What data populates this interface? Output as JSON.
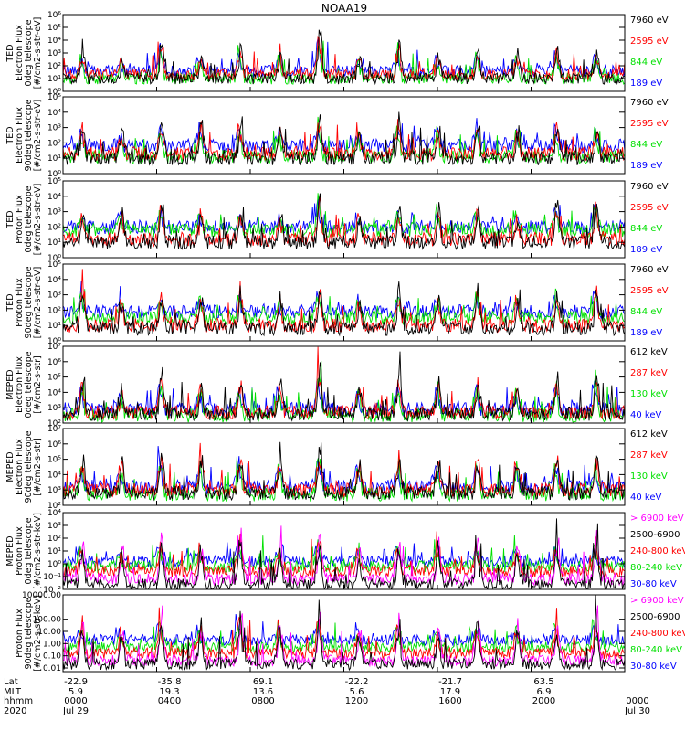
{
  "title": "NOAA19",
  "colors": {
    "black": "#000000",
    "red": "#ff0000",
    "green": "#00e000",
    "blue": "#0000ff",
    "magenta": "#ff00ff"
  },
  "chart_data": [
    {
      "type": "line",
      "ylabel": [
        "TED",
        "Electron Flux",
        "0deg telescope",
        "[#/cm2-s-str-eV]"
      ],
      "ytick_labels": [
        "10⁰",
        "10¹",
        "10²",
        "10³",
        "10⁴",
        "10⁵",
        "10⁶"
      ],
      "ylim_exp": [
        0,
        6
      ],
      "series": [
        {
          "name": "7960 eV",
          "color": "black",
          "base": 1.0
        },
        {
          "name": "2595 eV",
          "color": "red",
          "base": 1.3
        },
        {
          "name": "844 eV",
          "color": "green",
          "base": 1.0
        },
        {
          "name": "189 eV",
          "color": "blue",
          "base": 1.6
        }
      ],
      "peaks_exp": [
        3.5,
        2.8,
        4.5,
        3.2,
        4.0,
        3.8,
        5.4,
        3.0,
        4.2,
        3.5,
        3.9,
        3.3,
        4.0,
        3.6
      ]
    },
    {
      "type": "line",
      "ylabel": [
        "TED",
        "Electron Flux",
        "90deg telescope",
        "[#/cm2-s-str-eV]"
      ],
      "ytick_labels": [
        "10⁰",
        "10¹",
        "10²",
        "10³",
        "10⁴",
        "10⁵"
      ],
      "ylim_exp": [
        0,
        5
      ],
      "series": [
        {
          "name": "7960 eV",
          "color": "black",
          "base": 1.0
        },
        {
          "name": "2595 eV",
          "color": "red",
          "base": 1.3
        },
        {
          "name": "844 eV",
          "color": "green",
          "base": 1.1
        },
        {
          "name": "189 eV",
          "color": "blue",
          "base": 1.8
        }
      ],
      "peaks_exp": [
        3.2,
        3.0,
        4.0,
        3.5,
        3.8,
        3.4,
        4.5,
        3.0,
        3.9,
        3.6,
        3.7,
        3.2,
        3.8,
        3.5
      ]
    },
    {
      "type": "line",
      "ylabel": [
        "TED",
        "Proton Flux",
        "0deg telescope",
        "[#/cm2-s-str-eV]"
      ],
      "ytick_labels": [
        "10⁰",
        "10¹",
        "10²",
        "10³",
        "10⁴",
        "10⁵"
      ],
      "ylim_exp": [
        0,
        5
      ],
      "series": [
        {
          "name": "7960 eV",
          "color": "black",
          "base": 1.0
        },
        {
          "name": "2595 eV",
          "color": "red",
          "base": 1.2
        },
        {
          "name": "844 eV",
          "color": "green",
          "base": 1.8
        },
        {
          "name": "189 eV",
          "color": "blue",
          "base": 2.0
        }
      ],
      "peaks_exp": [
        3.0,
        3.2,
        3.6,
        3.1,
        3.4,
        3.0,
        4.3,
        3.2,
        3.5,
        3.3,
        3.6,
        3.1,
        3.8,
        4.0
      ]
    },
    {
      "type": "line",
      "ylabel": [
        "TED",
        "Proton Flux",
        "90deg telescope",
        "[#/cm2-s-str-eV]"
      ],
      "ytick_labels": [
        "10⁰",
        "10¹",
        "10²",
        "10³",
        "10⁴",
        "10⁵"
      ],
      "ylim_exp": [
        0,
        5
      ],
      "series": [
        {
          "name": "7960 eV",
          "color": "black",
          "base": 0.8
        },
        {
          "name": "2595 eV",
          "color": "red",
          "base": 1.0
        },
        {
          "name": "844 eV",
          "color": "green",
          "base": 1.5
        },
        {
          "name": "189 eV",
          "color": "blue",
          "base": 1.9
        }
      ],
      "peaks_exp": [
        4.0,
        3.0,
        3.5,
        3.3,
        3.6,
        3.0,
        3.9,
        3.2,
        3.6,
        3.4,
        3.8,
        3.2,
        3.6,
        3.9
      ]
    },
    {
      "type": "line",
      "ylabel": [
        "MEPED",
        "Electron Flux",
        "0deg telescope",
        "[#/cm2-s-str]"
      ],
      "ytick_labels": [
        "10²",
        "10³",
        "10⁴",
        "10⁵",
        "10⁶",
        "10⁷"
      ],
      "ylim_exp": [
        2,
        7
      ],
      "series": [
        {
          "name": "612 keV",
          "color": "black",
          "base": 2.6
        },
        {
          "name": "287 keV",
          "color": "red",
          "base": 2.7
        },
        {
          "name": "130 keV",
          "color": "green",
          "base": 2.5
        },
        {
          "name": "40 keV",
          "color": "blue",
          "base": 2.9
        }
      ],
      "peaks_exp": [
        5.2,
        4.5,
        5.8,
        5.0,
        5.5,
        5.3,
        6.5,
        4.8,
        5.6,
        5.0,
        5.2,
        4.7,
        5.5,
        5.9
      ]
    },
    {
      "type": "line",
      "ylabel": [
        "MEPED",
        "Electron Flux",
        "90deg telescope",
        "[#/cm2-s-str]"
      ],
      "ytick_labels": [
        "10²",
        "10³",
        "10⁴",
        "10⁵",
        "10⁶",
        "10⁷"
      ],
      "ylim_exp": [
        2,
        7
      ],
      "series": [
        {
          "name": "612 keV",
          "color": "black",
          "base": 2.8
        },
        {
          "name": "287 keV",
          "color": "red",
          "base": 3.0
        },
        {
          "name": "130 keV",
          "color": "green",
          "base": 2.7
        },
        {
          "name": "40 keV",
          "color": "blue",
          "base": 3.2
        }
      ],
      "peaks_exp": [
        5.5,
        5.0,
        6.2,
        5.6,
        5.8,
        5.4,
        6.6,
        5.2,
        5.8,
        5.5,
        5.6,
        5.3,
        5.7,
        6.0
      ]
    },
    {
      "type": "line",
      "ylabel": [
        "MEPED",
        "Proton Flux",
        "0deg telescope",
        "[#/cm2-s-str-keV]"
      ],
      "ytick_labels": [
        "10⁻²",
        "10⁻¹",
        "10⁰",
        "10¹",
        "10²",
        "10³",
        "10⁴"
      ],
      "ylim_exp": [
        -2,
        4
      ],
      "series": [
        {
          "name": "> 6900 keV",
          "color": "magenta",
          "base": -1.2
        },
        {
          "name": "2500-6900",
          "color": "black",
          "base": -1.6
        },
        {
          "name": "240-800 keV",
          "color": "red",
          "base": -0.6
        },
        {
          "name": "80-240 keV",
          "color": "green",
          "base": -0.2
        },
        {
          "name": "30-80 keV",
          "color": "blue",
          "base": 0.2
        }
      ],
      "peaks_exp": [
        2.2,
        1.5,
        2.6,
        1.8,
        3.2,
        2.0,
        3.0,
        1.6,
        2.4,
        1.9,
        2.3,
        1.7,
        2.2,
        2.5
      ]
    },
    {
      "type": "line",
      "ylabel": [
        "Proton Flux",
        "90deg telescope",
        "[#/cm2-s-str-keV]"
      ],
      "ytick_labels": [
        "0.01",
        "0.10",
        "1.00",
        "10.00",
        "100.00",
        "10000.00"
      ],
      "ytick_exp": [
        -2,
        -1,
        0,
        1,
        2,
        4
      ],
      "ylim_exp": [
        -2.3,
        4
      ],
      "series": [
        {
          "name": "> 6900 keV",
          "color": "magenta",
          "base": -1.4
        },
        {
          "name": "2500-6900",
          "color": "black",
          "base": -1.7
        },
        {
          "name": "240-800 keV",
          "color": "red",
          "base": -0.8
        },
        {
          "name": "80-240 keV",
          "color": "green",
          "base": -0.3
        },
        {
          "name": "30-80 keV",
          "color": "blue",
          "base": 0.3
        }
      ],
      "peaks_exp": [
        2.5,
        1.8,
        2.9,
        2.0,
        3.3,
        2.2,
        3.1,
        1.8,
        2.6,
        2.1,
        2.4,
        1.9,
        2.3,
        2.6
      ]
    }
  ],
  "x_axis": {
    "row_labels": [
      "Lat",
      "MLT",
      "hhmm",
      "2020"
    ],
    "ticks": [
      {
        "lat": "-22.9",
        "mlt": "5.9",
        "hhmm": "0000",
        "date": "Jul 29"
      },
      {
        "lat": "-35.8",
        "mlt": "19.3",
        "hhmm": "0400",
        "date": ""
      },
      {
        "lat": "69.1",
        "mlt": "13.6",
        "hhmm": "0800",
        "date": ""
      },
      {
        "lat": "-22.2",
        "mlt": "5.6",
        "hhmm": "1200",
        "date": ""
      },
      {
        "lat": "-21.7",
        "mlt": "17.9",
        "hhmm": "1600",
        "date": ""
      },
      {
        "lat": "63.5",
        "mlt": "6.9",
        "hhmm": "2000",
        "date": ""
      },
      {
        "lat": "",
        "mlt": "",
        "hhmm": "0000",
        "date": "Jul 30"
      }
    ]
  }
}
